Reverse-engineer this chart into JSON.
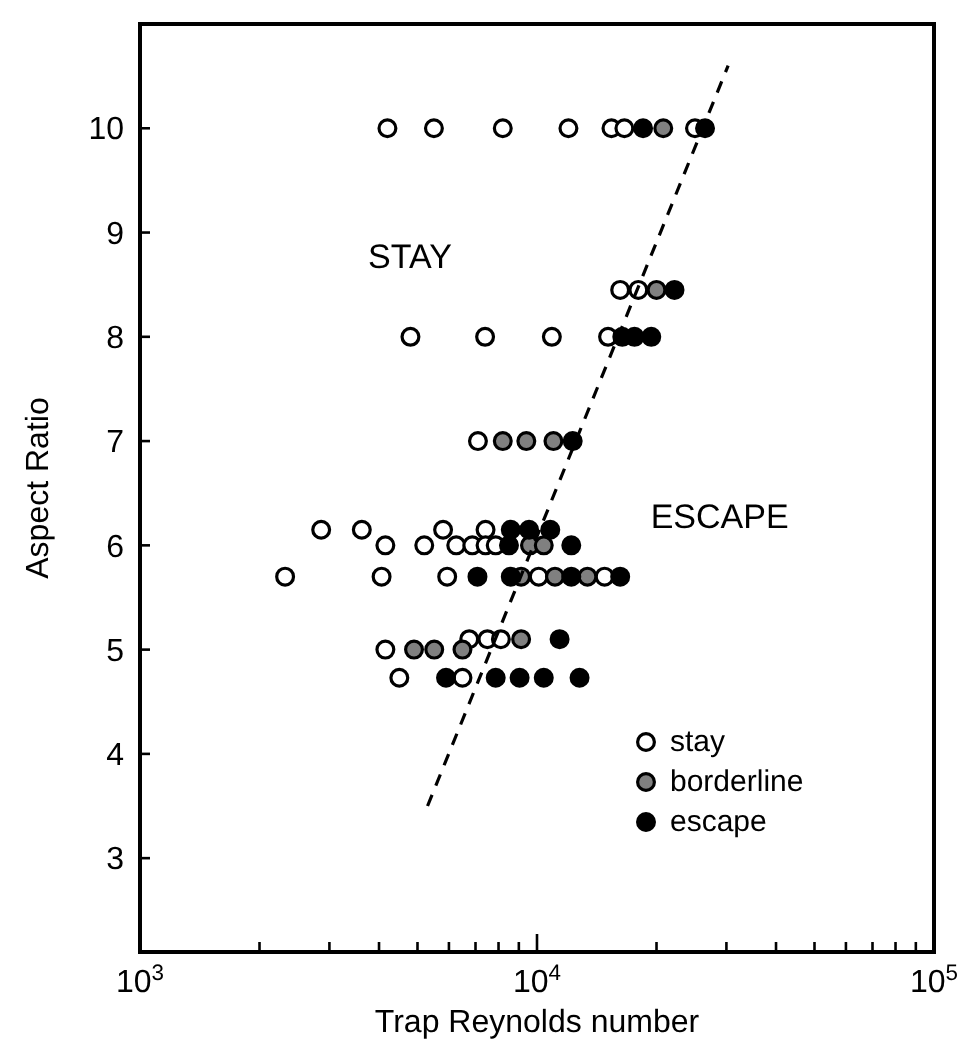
{
  "chart_data": {
    "type": "scatter",
    "xlabel": "Trap Reynolds number",
    "ylabel": "Aspect Ratio",
    "log": "x",
    "xlim": [
      1000,
      100000
    ],
    "ylim": [
      2.1,
      11
    ],
    "xticks": [
      {
        "value": 1000,
        "label": "10$^{3}$"
      },
      {
        "value": 2000,
        "label": null
      },
      {
        "value": 3000,
        "label": null
      },
      {
        "value": 4000,
        "label": null
      },
      {
        "value": 5000,
        "label": null
      },
      {
        "value": 6000,
        "label": null
      },
      {
        "value": 7000,
        "label": null
      },
      {
        "value": 8000,
        "label": null
      },
      {
        "value": 9000,
        "label": null
      },
      {
        "value": 10000,
        "label": "10$^{4}$"
      },
      {
        "value": 20000,
        "label": null
      },
      {
        "value": 30000,
        "label": null
      },
      {
        "value": 40000,
        "label": null
      },
      {
        "value": 50000,
        "label": null
      },
      {
        "value": 60000,
        "label": null
      },
      {
        "value": 70000,
        "label": null
      },
      {
        "value": 80000,
        "label": null
      },
      {
        "value": 90000,
        "label": null
      },
      {
        "value": 100000,
        "label": "10$^{5}$"
      }
    ],
    "yticks": [
      3,
      4,
      5,
      6,
      7,
      8,
      9,
      10
    ],
    "grid": false,
    "legend": "bottom right",
    "marker": "circle",
    "series": [
      {
        "name": "stay",
        "color": "#ffffff",
        "x": [
          4200,
          5500,
          8200,
          12000,
          15400,
          16600,
          25000,
          16200,
          18000,
          4800,
          7400,
          10900,
          15100,
          7100,
          2860,
          3620,
          5800,
          7420,
          4150,
          5200,
          6260,
          6870,
          7420,
          7870,
          2320,
          4060,
          5940,
          10100,
          14800,
          6750,
          7500,
          8110,
          4150,
          4500,
          6490
        ],
        "values": [
          10,
          10,
          10,
          10,
          10,
          10,
          10,
          8.45,
          8.45,
          8,
          8,
          8,
          8,
          7,
          6.15,
          6.15,
          6.15,
          6.15,
          6,
          6,
          6,
          6,
          6,
          6,
          5.7,
          5.7,
          5.7,
          5.7,
          5.7,
          5.1,
          5.1,
          5.1,
          5,
          4.73,
          4.73
        ]
      },
      {
        "name": "borderline",
        "color": "#808080",
        "x": [
          20800,
          20000,
          8200,
          9400,
          11000,
          9600,
          10400,
          9120,
          11100,
          13400,
          9120,
          4900,
          5510,
          6490
        ],
        "values": [
          10,
          8.45,
          7,
          7,
          7,
          6,
          6,
          5.7,
          5.7,
          5.7,
          5.1,
          5,
          5,
          5
        ]
      },
      {
        "name": "escape",
        "color": "#000000",
        "x": [
          18500,
          26500,
          22200,
          16400,
          17600,
          19400,
          12300,
          8590,
          9550,
          10800,
          8500,
          12200,
          7080,
          8590,
          12200,
          16200,
          11400,
          5900,
          7870,
          9040,
          10400,
          12800
        ],
        "values": [
          10,
          10,
          8.45,
          8,
          8,
          8,
          7,
          6.15,
          6.15,
          6.15,
          6,
          6,
          5.7,
          5.7,
          5.7,
          5.7,
          5.1,
          4.73,
          4.73,
          4.73,
          4.73,
          4.73
        ]
      },
      {
        "type": "line",
        "color": "#000000",
        "line_style": "dashed",
        "marker": "none",
        "x": [
          5300,
          30300
        ],
        "values": [
          3.5,
          10.6
        ]
      }
    ],
    "annotations": [
      "STAY",
      "ESCAPE"
    ]
  }
}
